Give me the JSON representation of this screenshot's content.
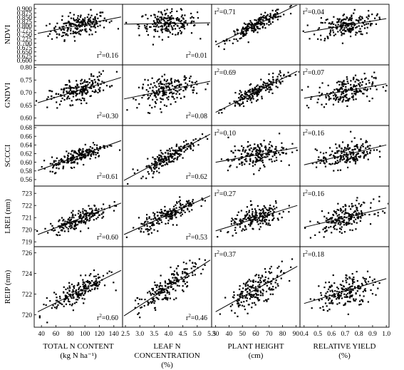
{
  "chart_data": {
    "type": "scatter",
    "rows": [
      {
        "label": "NDVI",
        "ylim": [
          0.575,
          0.925
        ],
        "yticks": [
          "0.900",
          "0.875",
          "0.850",
          "0.825",
          "0.800",
          "0.775",
          "0.750",
          "0.725",
          "0.700",
          "0.675",
          "0.650",
          "0.625",
          "0.600"
        ],
        "ytick_values": [
          0.9,
          0.875,
          0.85,
          0.825,
          0.8,
          0.775,
          0.75,
          0.725,
          0.7,
          0.675,
          0.65,
          0.625,
          0.6
        ],
        "center": 0.8,
        "spread": 0.065
      },
      {
        "label": "GNDVI",
        "ylim": [
          0.57,
          0.81
        ],
        "yticks": [
          "0.80",
          "0.75",
          "0.70",
          "0.65",
          "0.60"
        ],
        "ytick_values": [
          0.8,
          0.75,
          0.7,
          0.65,
          0.6
        ],
        "center": 0.705,
        "spread": 0.05
      },
      {
        "label": "SCCCI",
        "ylim": [
          0.545,
          0.685
        ],
        "yticks": [
          "0.68",
          "0.66",
          "0.64",
          "0.62",
          "0.60",
          "0.58",
          "0.56"
        ],
        "ytick_values": [
          0.68,
          0.66,
          0.64,
          0.62,
          0.6,
          0.58,
          0.56
        ],
        "center": 0.615,
        "spread": 0.028
      },
      {
        "label": "LREI (nm)",
        "ylim": [
          718.6,
          723.6
        ],
        "yticks": [
          "723",
          "722",
          "721",
          "720",
          "719"
        ],
        "ytick_values": [
          723,
          722,
          721,
          720,
          719
        ],
        "center": 720.9,
        "spread": 1.0
      },
      {
        "label": "REIP (nm)",
        "ylim": [
          718.8,
          726.6
        ],
        "yticks": [
          "726",
          "724",
          "722",
          "720",
          "718"
        ],
        "ytick_values": [
          726,
          724,
          722,
          720,
          718
        ],
        "center": 722.5,
        "spread": 1.6
      }
    ],
    "columns": [
      {
        "label_lines": [
          "TOTAL N CONTENT",
          "(kg N ha⁻¹)"
        ],
        "xlim": [
          30,
          152
        ],
        "xticks": [
          "40",
          "60",
          "80",
          "100",
          "120",
          "140"
        ],
        "xtick_values": [
          40,
          60,
          80,
          100,
          120,
          140
        ]
      },
      {
        "label_lines": [
          "LEAF N",
          "CONCENTRATION",
          "(%)"
        ],
        "xlim": [
          2.4,
          5.5
        ],
        "xticks": [
          "2.5",
          "3.0",
          "3.5",
          "4.0",
          "4.5",
          "5.0",
          "5.5"
        ],
        "xtick_values": [
          2.5,
          3.0,
          3.5,
          4.0,
          4.5,
          5.0,
          5.5
        ]
      },
      {
        "label_lines": [
          "PLANT HEIGHT",
          "(cm)"
        ],
        "xlim": [
          27,
          93
        ],
        "xticks": [
          "30",
          "40",
          "50",
          "60",
          "70",
          "80",
          "90"
        ],
        "xtick_values": [
          30,
          40,
          50,
          60,
          70,
          80,
          90
        ]
      },
      {
        "label_lines": [
          "RELATIVE YIELD",
          "(%)"
        ],
        "xlim": [
          0.37,
          1.02
        ],
        "xticks": [
          "0.4",
          "0.5",
          "0.6",
          "0.7",
          "0.8",
          "0.9",
          "1.0"
        ],
        "xtick_values": [
          0.4,
          0.5,
          0.6,
          0.7,
          0.8,
          0.9,
          1.0
        ]
      }
    ],
    "panels": [
      [
        {
          "r2": "0.16",
          "r2_pos": "bottom-right",
          "fit": [
            [
              35,
              0.757
            ],
            [
              150,
              0.852
            ]
          ]
        },
        {
          "r2": "0.01",
          "r2_pos": "bottom-right",
          "fit": [
            [
              2.45,
              0.81
            ],
            [
              5.45,
              0.818
            ]
          ]
        },
        {
          "r2": "0.71",
          "r2_pos": "top-left",
          "fit": [
            [
              30,
              0.69
            ],
            [
              91,
              0.922
            ]
          ]
        },
        {
          "r2": "0.04",
          "r2_pos": "top-left",
          "fit": [
            [
              0.4,
              0.762
            ],
            [
              1.0,
              0.842
            ]
          ]
        }
      ],
      [
        {
          "r2": "0.30",
          "r2_pos": "bottom-right",
          "fit": [
            [
              35,
              0.66
            ],
            [
              150,
              0.76
            ]
          ]
        },
        {
          "r2": "0.08",
          "r2_pos": "bottom-right",
          "fit": [
            [
              2.45,
              0.675
            ],
            [
              5.45,
              0.745
            ]
          ]
        },
        {
          "r2": "0.69",
          "r2_pos": "top-left",
          "fit": [
            [
              30,
              0.622
            ],
            [
              91,
              0.785
            ]
          ]
        },
        {
          "r2": "0.07",
          "r2_pos": "top-left",
          "fit": [
            [
              0.4,
              0.678
            ],
            [
              1.0,
              0.735
            ]
          ]
        }
      ],
      [
        {
          "r2": "0.61",
          "r2_pos": "bottom-right",
          "fit": [
            [
              35,
              0.581
            ],
            [
              150,
              0.65
            ]
          ]
        },
        {
          "r2": "0.62",
          "r2_pos": "bottom-right",
          "fit": [
            [
              2.45,
              0.558
            ],
            [
              5.45,
              0.665
            ]
          ]
        },
        {
          "r2": "0.10",
          "r2_pos": "top-left",
          "fit": [
            [
              30,
              0.6
            ],
            [
              91,
              0.634
            ]
          ]
        },
        {
          "r2": "0.16",
          "r2_pos": "top-left",
          "fit": [
            [
              0.4,
              0.594
            ],
            [
              1.0,
              0.64
            ]
          ]
        }
      ],
      [
        {
          "r2": "0.60",
          "r2_pos": "bottom-right",
          "fit": [
            [
              35,
              719.6
            ],
            [
              150,
              722.2
            ]
          ]
        },
        {
          "r2": "0.53",
          "r2_pos": "bottom-right",
          "fit": [
            [
              2.45,
              719.6
            ],
            [
              5.45,
              722.8
            ]
          ]
        },
        {
          "r2": "0.27",
          "r2_pos": "top-left",
          "fit": [
            [
              30,
              719.9
            ],
            [
              91,
              722.0
            ]
          ]
        },
        {
          "r2": "0.16",
          "r2_pos": "top-left",
          "fit": [
            [
              0.4,
              720.2
            ],
            [
              1.0,
              721.8
            ]
          ]
        }
      ],
      [
        {
          "r2": "0.60",
          "r2_pos": "bottom-right",
          "fit": [
            [
              35,
              720.3
            ],
            [
              150,
              724.3
            ]
          ]
        },
        {
          "r2": "0.46",
          "r2_pos": "bottom-right",
          "fit": [
            [
              2.45,
              719.9
            ],
            [
              5.45,
              725.3
            ]
          ]
        },
        {
          "r2": "0.37",
          "r2_pos": "top-left",
          "fit": [
            [
              30,
              720.3
            ],
            [
              91,
              724.7
            ]
          ]
        },
        {
          "r2": "0.18",
          "r2_pos": "top-left",
          "fit": [
            [
              0.4,
              721.1
            ],
            [
              1.0,
              723.5
            ]
          ]
        }
      ]
    ],
    "points_per_panel": 200,
    "grid": false,
    "legend": "none"
  }
}
